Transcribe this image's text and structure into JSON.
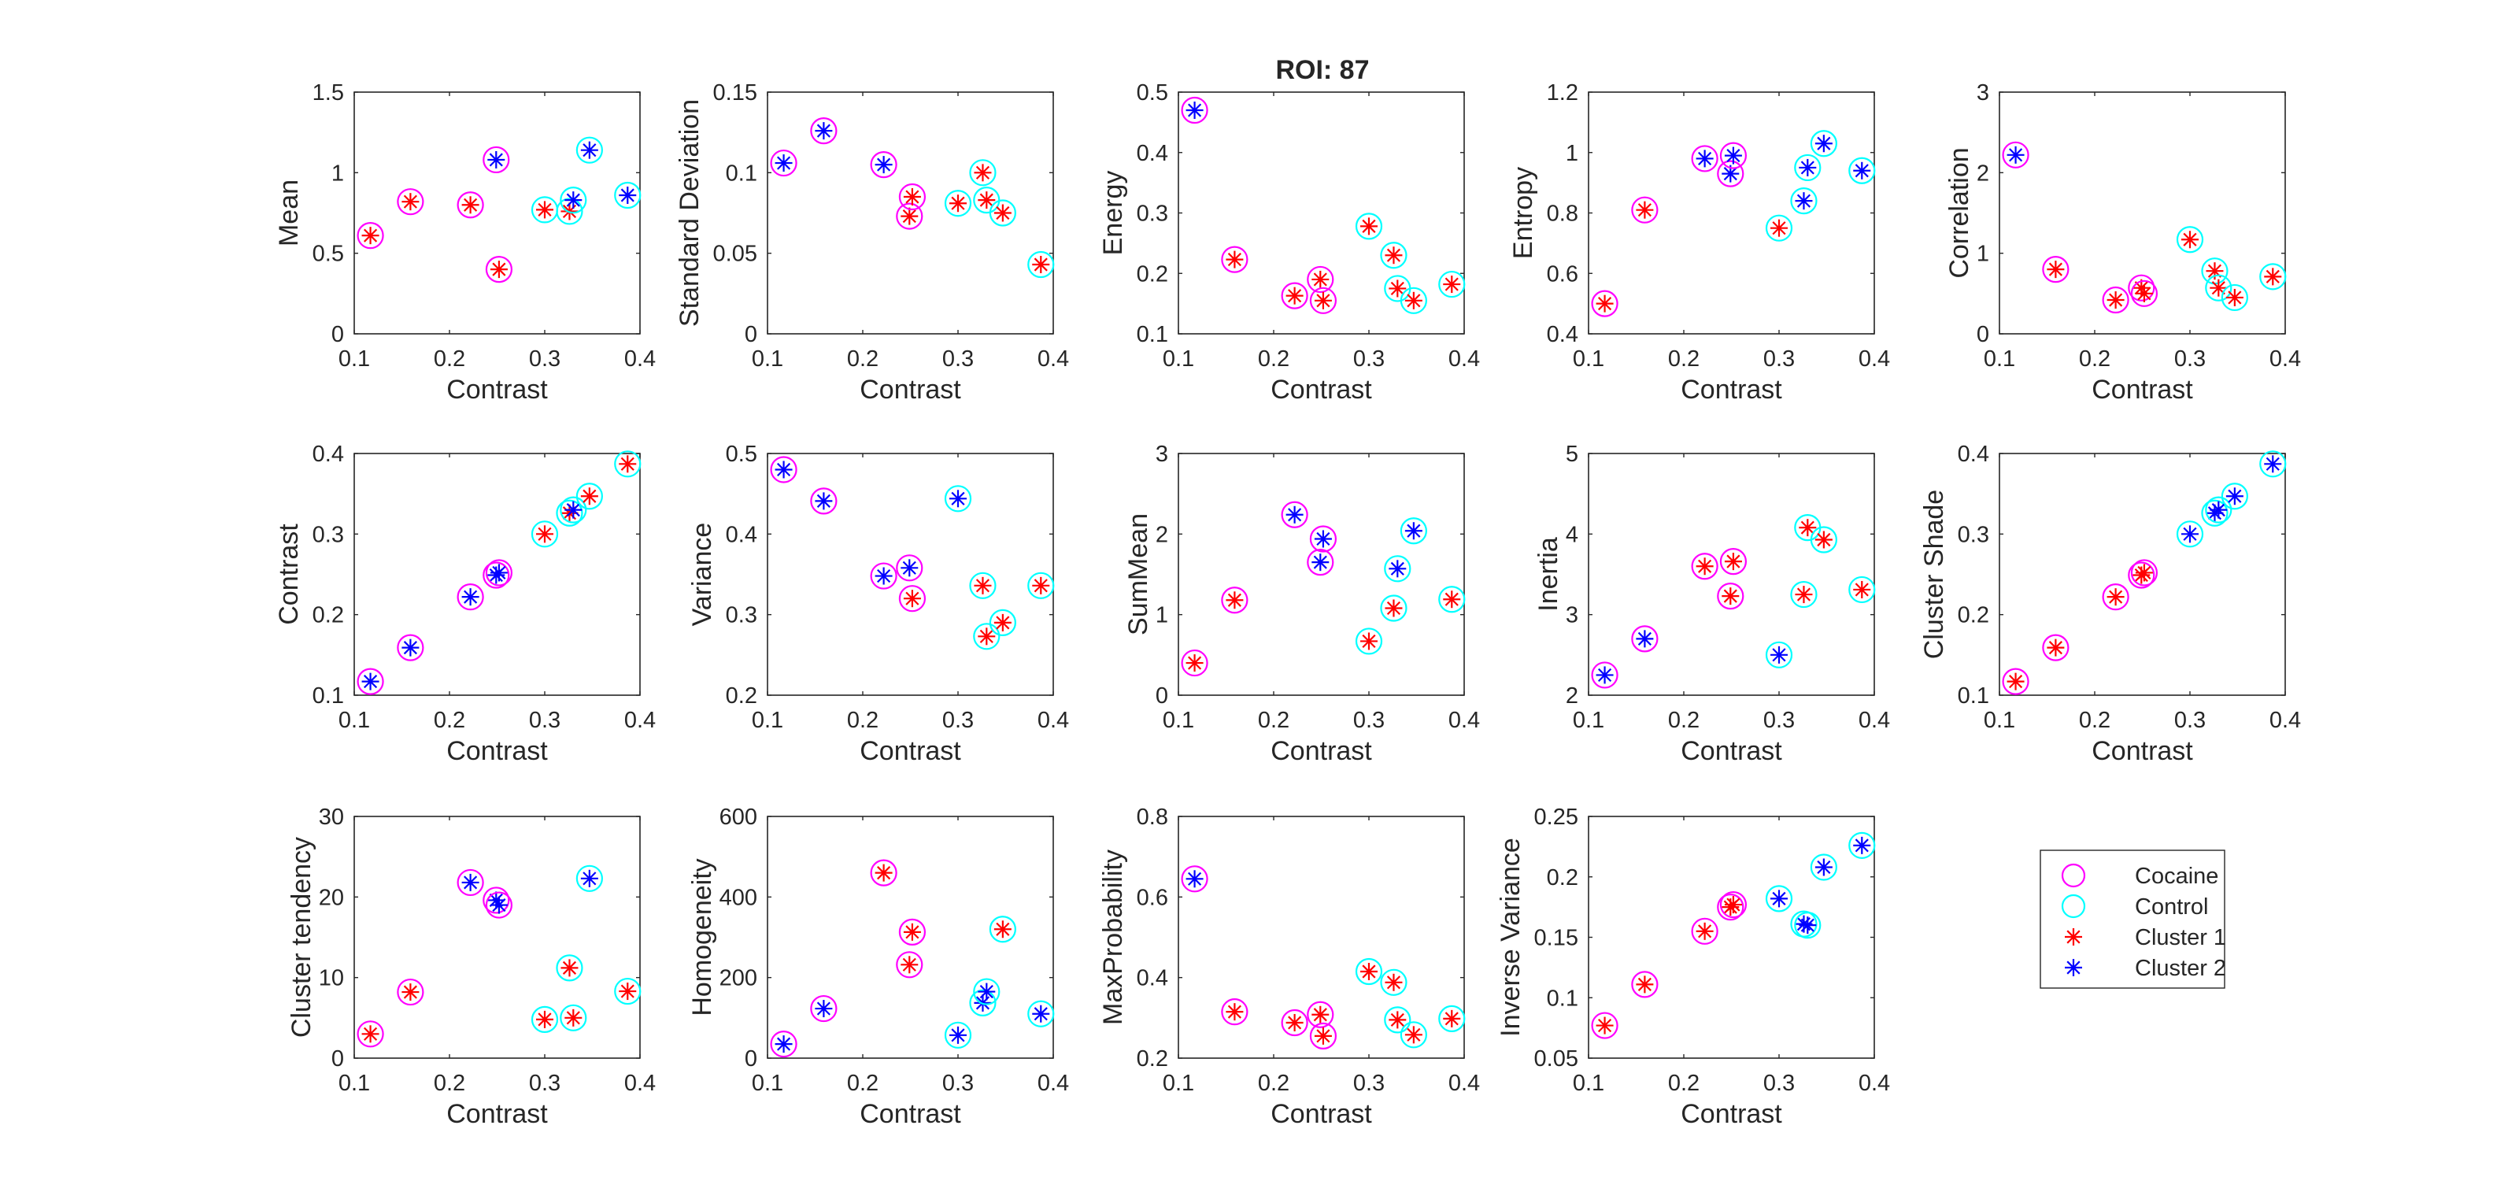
{
  "figure": {
    "title": "ROI: 87"
  },
  "colors": {
    "cocaine": "#ff00ff",
    "control": "#00ffff",
    "cluster1": "#ff0000",
    "cluster2": "#0000ff",
    "axes": "#262626",
    "background": "#ffffff"
  },
  "legend": {
    "placement": "bottom-right",
    "entries": [
      {
        "label": "Cocaine",
        "marker": "circle",
        "color": "#ff00ff"
      },
      {
        "label": "Control",
        "marker": "circle",
        "color": "#00ffff"
      },
      {
        "label": "Cluster 1",
        "marker": "asterisk",
        "color": "#ff0000"
      },
      {
        "label": "Cluster 2",
        "marker": "asterisk",
        "color": "#0000ff"
      }
    ]
  },
  "chart_data": [
    {
      "type": "scatter",
      "xlabel": "Contrast",
      "ylabel": "Mean",
      "xlim": [
        0.1,
        0.4
      ],
      "ylim": [
        0,
        1.5
      ],
      "xticks": [
        "0.1",
        "0.2",
        "0.3",
        "0.4"
      ],
      "yticks": [
        "0",
        "0.5",
        "1",
        "1.5"
      ],
      "x": [
        0.117,
        0.159,
        0.222,
        0.249,
        0.252,
        0.3,
        0.326,
        0.33,
        0.347,
        0.387
      ],
      "y": [
        0.61,
        0.82,
        0.8,
        1.08,
        0.4,
        0.77,
        0.76,
        0.83,
        1.14,
        0.86
      ],
      "group": [
        "Cocaine",
        "Cocaine",
        "Cocaine",
        "Cocaine",
        "Cocaine",
        "Control",
        "Control",
        "Control",
        "Control",
        "Control"
      ],
      "cluster": [
        "Cluster 1",
        "Cluster 1",
        "Cluster 1",
        "Cluster 2",
        "Cluster 1",
        "Cluster 1",
        "Cluster 1",
        "Cluster 2",
        "Cluster 2",
        "Cluster 2"
      ]
    },
    {
      "type": "scatter",
      "xlabel": "Contrast",
      "ylabel": "Standard Deviation",
      "xlim": [
        0.1,
        0.4
      ],
      "ylim": [
        0,
        0.15
      ],
      "xticks": [
        "0.1",
        "0.2",
        "0.3",
        "0.4"
      ],
      "yticks": [
        "0",
        "0.05",
        "0.1",
        "0.15"
      ],
      "x": [
        0.117,
        0.159,
        0.222,
        0.249,
        0.252,
        0.3,
        0.326,
        0.33,
        0.347,
        0.387
      ],
      "y": [
        0.106,
        0.126,
        0.105,
        0.073,
        0.085,
        0.081,
        0.1,
        0.083,
        0.075,
        0.043
      ],
      "group": [
        "Cocaine",
        "Cocaine",
        "Cocaine",
        "Cocaine",
        "Cocaine",
        "Control",
        "Control",
        "Control",
        "Control",
        "Control"
      ],
      "cluster": [
        "Cluster 2",
        "Cluster 2",
        "Cluster 2",
        "Cluster 1",
        "Cluster 1",
        "Cluster 1",
        "Cluster 1",
        "Cluster 1",
        "Cluster 1",
        "Cluster 1"
      ]
    },
    {
      "type": "scatter",
      "xlabel": "Contrast",
      "ylabel": "Energy",
      "xlim": [
        0.1,
        0.4
      ],
      "ylim": [
        0.1,
        0.5
      ],
      "xticks": [
        "0.1",
        "0.2",
        "0.3",
        "0.4"
      ],
      "yticks": [
        "0.1",
        "0.2",
        "0.3",
        "0.4",
        "0.5"
      ],
      "x": [
        0.117,
        0.159,
        0.222,
        0.249,
        0.252,
        0.3,
        0.326,
        0.33,
        0.347,
        0.387
      ],
      "y": [
        0.47,
        0.223,
        0.163,
        0.19,
        0.155,
        0.278,
        0.23,
        0.175,
        0.155,
        0.182
      ],
      "group": [
        "Cocaine",
        "Cocaine",
        "Cocaine",
        "Cocaine",
        "Cocaine",
        "Control",
        "Control",
        "Control",
        "Control",
        "Control"
      ],
      "cluster": [
        "Cluster 2",
        "Cluster 1",
        "Cluster 1",
        "Cluster 1",
        "Cluster 1",
        "Cluster 1",
        "Cluster 1",
        "Cluster 1",
        "Cluster 1",
        "Cluster 1"
      ]
    },
    {
      "type": "scatter",
      "xlabel": "Contrast",
      "ylabel": "Entropy",
      "xlim": [
        0.1,
        0.4
      ],
      "ylim": [
        0.4,
        1.2
      ],
      "xticks": [
        "0.1",
        "0.2",
        "0.3",
        "0.4"
      ],
      "yticks": [
        "0.4",
        "0.6",
        "0.8",
        "1",
        "1.2"
      ],
      "x": [
        0.117,
        0.159,
        0.222,
        0.249,
        0.252,
        0.3,
        0.326,
        0.33,
        0.347,
        0.387
      ],
      "y": [
        0.5,
        0.81,
        0.98,
        0.93,
        0.99,
        0.75,
        0.84,
        0.95,
        1.03,
        0.94
      ],
      "group": [
        "Cocaine",
        "Cocaine",
        "Cocaine",
        "Cocaine",
        "Cocaine",
        "Control",
        "Control",
        "Control",
        "Control",
        "Control"
      ],
      "cluster": [
        "Cluster 1",
        "Cluster 1",
        "Cluster 2",
        "Cluster 2",
        "Cluster 2",
        "Cluster 1",
        "Cluster 2",
        "Cluster 2",
        "Cluster 2",
        "Cluster 2"
      ]
    },
    {
      "type": "scatter",
      "xlabel": "Contrast",
      "ylabel": "Correlation",
      "xlim": [
        0.1,
        0.4
      ],
      "ylim": [
        0,
        3
      ],
      "xticks": [
        "0.1",
        "0.2",
        "0.3",
        "0.4"
      ],
      "yticks": [
        "0",
        "1",
        "2",
        "3"
      ],
      "x": [
        0.117,
        0.159,
        0.222,
        0.249,
        0.252,
        0.3,
        0.326,
        0.33,
        0.347,
        0.387
      ],
      "y": [
        2.22,
        0.8,
        0.42,
        0.57,
        0.5,
        1.17,
        0.78,
        0.57,
        0.45,
        0.71
      ],
      "group": [
        "Cocaine",
        "Cocaine",
        "Cocaine",
        "Cocaine",
        "Cocaine",
        "Control",
        "Control",
        "Control",
        "Control",
        "Control"
      ],
      "cluster": [
        "Cluster 2",
        "Cluster 1",
        "Cluster 1",
        "Cluster 1",
        "Cluster 1",
        "Cluster 1",
        "Cluster 1",
        "Cluster 1",
        "Cluster 1",
        "Cluster 1"
      ]
    },
    {
      "type": "scatter",
      "xlabel": "Contrast",
      "ylabel": "Contrast",
      "xlim": [
        0.1,
        0.4
      ],
      "ylim": [
        0.1,
        0.4
      ],
      "xticks": [
        "0.1",
        "0.2",
        "0.3",
        "0.4"
      ],
      "yticks": [
        "0.1",
        "0.2",
        "0.3",
        "0.4"
      ],
      "x": [
        0.117,
        0.159,
        0.222,
        0.249,
        0.252,
        0.3,
        0.326,
        0.33,
        0.347,
        0.387
      ],
      "y": [
        0.117,
        0.159,
        0.222,
        0.249,
        0.252,
        0.3,
        0.326,
        0.33,
        0.347,
        0.387
      ],
      "group": [
        "Cocaine",
        "Cocaine",
        "Cocaine",
        "Cocaine",
        "Cocaine",
        "Control",
        "Control",
        "Control",
        "Control",
        "Control"
      ],
      "cluster": [
        "Cluster 2",
        "Cluster 2",
        "Cluster 2",
        "Cluster 2",
        "Cluster 2",
        "Cluster 1",
        "Cluster 1",
        "Cluster 2",
        "Cluster 1",
        "Cluster 1"
      ]
    },
    {
      "type": "scatter",
      "xlabel": "Contrast",
      "ylabel": "Variance",
      "xlim": [
        0.1,
        0.4
      ],
      "ylim": [
        0.2,
        0.5
      ],
      "xticks": [
        "0.1",
        "0.2",
        "0.3",
        "0.4"
      ],
      "yticks": [
        "0.2",
        "0.3",
        "0.4",
        "0.5"
      ],
      "x": [
        0.117,
        0.159,
        0.222,
        0.249,
        0.252,
        0.3,
        0.326,
        0.33,
        0.347,
        0.387
      ],
      "y": [
        0.48,
        0.441,
        0.348,
        0.358,
        0.32,
        0.444,
        0.336,
        0.273,
        0.29,
        0.336
      ],
      "group": [
        "Cocaine",
        "Cocaine",
        "Cocaine",
        "Cocaine",
        "Cocaine",
        "Control",
        "Control",
        "Control",
        "Control",
        "Control"
      ],
      "cluster": [
        "Cluster 2",
        "Cluster 2",
        "Cluster 2",
        "Cluster 2",
        "Cluster 1",
        "Cluster 2",
        "Cluster 1",
        "Cluster 1",
        "Cluster 1",
        "Cluster 1"
      ]
    },
    {
      "type": "scatter",
      "xlabel": "Contrast",
      "ylabel": "SumMean",
      "xlim": [
        0.1,
        0.4
      ],
      "ylim": [
        0,
        3
      ],
      "xticks": [
        "0.1",
        "0.2",
        "0.3",
        "0.4"
      ],
      "yticks": [
        "0",
        "1",
        "2",
        "3"
      ],
      "x": [
        0.117,
        0.159,
        0.222,
        0.249,
        0.252,
        0.3,
        0.326,
        0.33,
        0.347,
        0.387
      ],
      "y": [
        0.4,
        1.18,
        2.24,
        1.65,
        1.94,
        0.67,
        1.08,
        1.57,
        2.04,
        1.19
      ],
      "group": [
        "Cocaine",
        "Cocaine",
        "Cocaine",
        "Cocaine",
        "Cocaine",
        "Control",
        "Control",
        "Control",
        "Control",
        "Control"
      ],
      "cluster": [
        "Cluster 1",
        "Cluster 1",
        "Cluster 2",
        "Cluster 2",
        "Cluster 2",
        "Cluster 1",
        "Cluster 1",
        "Cluster 2",
        "Cluster 2",
        "Cluster 1"
      ]
    },
    {
      "type": "scatter",
      "xlabel": "Contrast",
      "ylabel": "Inertia",
      "xlim": [
        0.1,
        0.4
      ],
      "ylim": [
        2,
        5
      ],
      "xticks": [
        "0.1",
        "0.2",
        "0.3",
        "0.4"
      ],
      "yticks": [
        "2",
        "3",
        "4",
        "5"
      ],
      "x": [
        0.117,
        0.159,
        0.222,
        0.249,
        0.252,
        0.3,
        0.326,
        0.33,
        0.347,
        0.387
      ],
      "y": [
        2.25,
        2.7,
        3.6,
        3.23,
        3.66,
        2.5,
        3.25,
        4.08,
        3.93,
        3.31
      ],
      "group": [
        "Cocaine",
        "Cocaine",
        "Cocaine",
        "Cocaine",
        "Cocaine",
        "Control",
        "Control",
        "Control",
        "Control",
        "Control"
      ],
      "cluster": [
        "Cluster 2",
        "Cluster 2",
        "Cluster 1",
        "Cluster 1",
        "Cluster 1",
        "Cluster 2",
        "Cluster 1",
        "Cluster 1",
        "Cluster 1",
        "Cluster 1"
      ]
    },
    {
      "type": "scatter",
      "xlabel": "Contrast",
      "ylabel": "Cluster Shade",
      "xlim": [
        0.1,
        0.4
      ],
      "ylim": [
        0.1,
        0.4
      ],
      "xticks": [
        "0.1",
        "0.2",
        "0.3",
        "0.4"
      ],
      "yticks": [
        "0.1",
        "0.2",
        "0.3",
        "0.4"
      ],
      "x": [
        0.117,
        0.159,
        0.222,
        0.249,
        0.252,
        0.3,
        0.326,
        0.33,
        0.347,
        0.387
      ],
      "y": [
        0.117,
        0.159,
        0.222,
        0.249,
        0.252,
        0.3,
        0.326,
        0.33,
        0.347,
        0.387
      ],
      "group": [
        "Cocaine",
        "Cocaine",
        "Cocaine",
        "Cocaine",
        "Cocaine",
        "Control",
        "Control",
        "Control",
        "Control",
        "Control"
      ],
      "cluster": [
        "Cluster 1",
        "Cluster 1",
        "Cluster 1",
        "Cluster 1",
        "Cluster 1",
        "Cluster 2",
        "Cluster 2",
        "Cluster 2",
        "Cluster 2",
        "Cluster 2"
      ]
    },
    {
      "type": "scatter",
      "xlabel": "Contrast",
      "ylabel": "Cluster tendency",
      "xlim": [
        0.1,
        0.4
      ],
      "ylim": [
        0,
        30
      ],
      "xticks": [
        "0.1",
        "0.2",
        "0.3",
        "0.4"
      ],
      "yticks": [
        "0",
        "10",
        "20",
        "30"
      ],
      "x": [
        0.117,
        0.159,
        0.222,
        0.249,
        0.252,
        0.3,
        0.326,
        0.33,
        0.347,
        0.387
      ],
      "y": [
        3.0,
        8.2,
        21.8,
        19.6,
        19.0,
        4.8,
        11.2,
        5.0,
        22.3,
        8.3
      ],
      "group": [
        "Cocaine",
        "Cocaine",
        "Cocaine",
        "Cocaine",
        "Cocaine",
        "Control",
        "Control",
        "Control",
        "Control",
        "Control"
      ],
      "cluster": [
        "Cluster 1",
        "Cluster 1",
        "Cluster 2",
        "Cluster 2",
        "Cluster 2",
        "Cluster 1",
        "Cluster 1",
        "Cluster 1",
        "Cluster 2",
        "Cluster 1"
      ]
    },
    {
      "type": "scatter",
      "xlabel": "Contrast",
      "ylabel": "Homogeneity",
      "xlim": [
        0.1,
        0.4
      ],
      "ylim": [
        0,
        600
      ],
      "xticks": [
        "0.1",
        "0.2",
        "0.3",
        "0.4"
      ],
      "yticks": [
        "0",
        "200",
        "400",
        "600"
      ],
      "x": [
        0.117,
        0.159,
        0.222,
        0.249,
        0.252,
        0.3,
        0.326,
        0.33,
        0.347,
        0.387
      ],
      "y": [
        35,
        123,
        460,
        232,
        313,
        57,
        137,
        165,
        320,
        110
      ],
      "group": [
        "Cocaine",
        "Cocaine",
        "Cocaine",
        "Cocaine",
        "Cocaine",
        "Control",
        "Control",
        "Control",
        "Control",
        "Control"
      ],
      "cluster": [
        "Cluster 2",
        "Cluster 2",
        "Cluster 1",
        "Cluster 1",
        "Cluster 1",
        "Cluster 2",
        "Cluster 2",
        "Cluster 2",
        "Cluster 1",
        "Cluster 2"
      ]
    },
    {
      "type": "scatter",
      "xlabel": "Contrast",
      "ylabel": "MaxProbability",
      "xlim": [
        0.1,
        0.4
      ],
      "ylim": [
        0.2,
        0.8
      ],
      "xticks": [
        "0.1",
        "0.2",
        "0.3",
        "0.4"
      ],
      "yticks": [
        "0.2",
        "0.4",
        "0.6",
        "0.8"
      ],
      "x": [
        0.117,
        0.159,
        0.222,
        0.249,
        0.252,
        0.3,
        0.326,
        0.33,
        0.347,
        0.387
      ],
      "y": [
        0.645,
        0.315,
        0.288,
        0.308,
        0.255,
        0.415,
        0.388,
        0.295,
        0.258,
        0.298
      ],
      "group": [
        "Cocaine",
        "Cocaine",
        "Cocaine",
        "Cocaine",
        "Cocaine",
        "Control",
        "Control",
        "Control",
        "Control",
        "Control"
      ],
      "cluster": [
        "Cluster 2",
        "Cluster 1",
        "Cluster 1",
        "Cluster 1",
        "Cluster 1",
        "Cluster 1",
        "Cluster 1",
        "Cluster 1",
        "Cluster 1",
        "Cluster 1"
      ]
    },
    {
      "type": "scatter",
      "xlabel": "Contrast",
      "ylabel": "Inverse Variance",
      "xlim": [
        0.1,
        0.4
      ],
      "ylim": [
        0.05,
        0.25
      ],
      "xticks": [
        "0.1",
        "0.2",
        "0.3",
        "0.4"
      ],
      "yticks": [
        "0.05",
        "0.1",
        "0.15",
        "0.2",
        "0.25"
      ],
      "x": [
        0.117,
        0.159,
        0.222,
        0.249,
        0.252,
        0.3,
        0.326,
        0.33,
        0.347,
        0.387
      ],
      "y": [
        0.077,
        0.111,
        0.155,
        0.175,
        0.177,
        0.182,
        0.161,
        0.16,
        0.208,
        0.226
      ],
      "group": [
        "Cocaine",
        "Cocaine",
        "Cocaine",
        "Cocaine",
        "Cocaine",
        "Control",
        "Control",
        "Control",
        "Control",
        "Control"
      ],
      "cluster": [
        "Cluster 1",
        "Cluster 1",
        "Cluster 1",
        "Cluster 1",
        "Cluster 1",
        "Cluster 2",
        "Cluster 2",
        "Cluster 2",
        "Cluster 2",
        "Cluster 2"
      ]
    }
  ]
}
